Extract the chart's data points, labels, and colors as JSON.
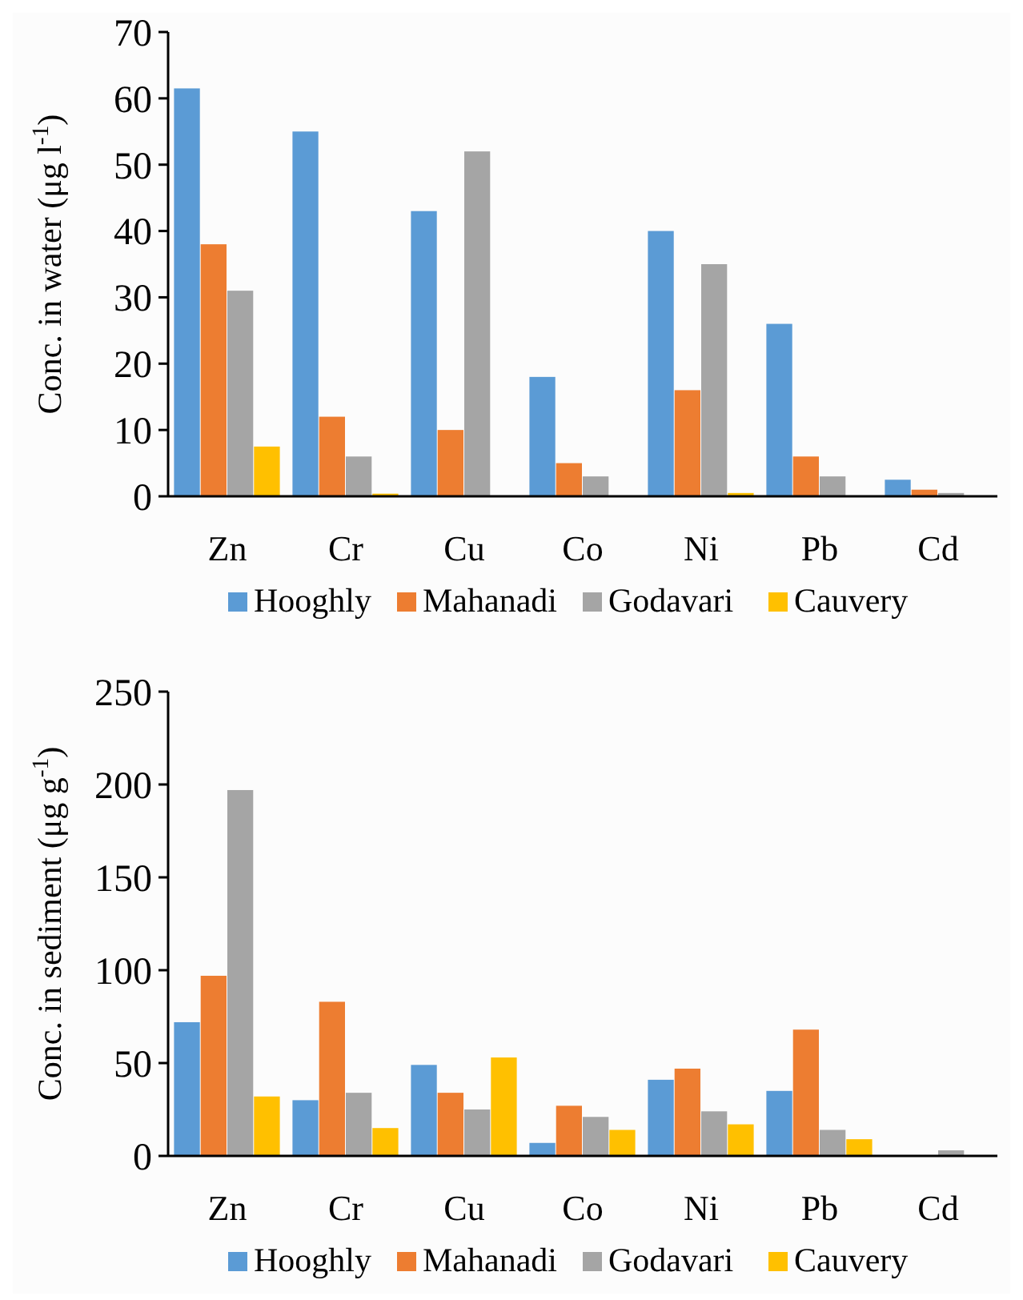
{
  "chart_data": [
    {
      "type": "bar",
      "categories": [
        "Zn",
        "Cr",
        "Cu",
        "Co",
        "Ni",
        "Pb",
        "Cd"
      ],
      "ylabel": "Conc. in water (μg l$^{-1}$)",
      "ylim": [
        0,
        70
      ],
      "yticks": [
        0,
        10,
        20,
        30,
        40,
        50,
        60,
        70
      ],
      "legend": "bottom",
      "grid": false,
      "series": [
        {
          "name": "Hooghly",
          "color": "#5b9bd5",
          "values": [
            61.5,
            55,
            43,
            18,
            40,
            26,
            2.5
          ]
        },
        {
          "name": "Mahanadi",
          "color": "#ed7d31",
          "values": [
            38,
            12,
            10,
            5,
            16,
            6,
            1
          ]
        },
        {
          "name": "Godavari",
          "color": "#a5a5a5",
          "values": [
            31,
            6,
            52,
            3,
            35,
            3,
            0.5
          ]
        },
        {
          "name": "Cauvery",
          "color": "#ffc000",
          "values": [
            7.5,
            0.4,
            0,
            0,
            0.5,
            0,
            0
          ]
        }
      ]
    },
    {
      "type": "bar",
      "categories": [
        "Zn",
        "Cr",
        "Cu",
        "Co",
        "Ni",
        "Pb",
        "Cd"
      ],
      "ylabel": "Conc. in sediment (μg g$^{-1}$)",
      "ylim": [
        0,
        250
      ],
      "yticks": [
        0,
        50,
        100,
        150,
        200,
        250
      ],
      "legend": "bottom",
      "grid": false,
      "series": [
        {
          "name": "Hooghly",
          "color": "#5b9bd5",
          "values": [
            72,
            30,
            49,
            7,
            41,
            35,
            0
          ]
        },
        {
          "name": "Mahanadi",
          "color": "#ed7d31",
          "values": [
            97,
            83,
            34,
            27,
            47,
            68,
            0
          ]
        },
        {
          "name": "Godavari",
          "color": "#a5a5a5",
          "values": [
            197,
            34,
            25,
            21,
            24,
            14,
            3
          ]
        },
        {
          "name": "Cauvery",
          "color": "#ffc000",
          "values": [
            32,
            15,
            53,
            14,
            17,
            9,
            0
          ]
        }
      ]
    }
  ]
}
